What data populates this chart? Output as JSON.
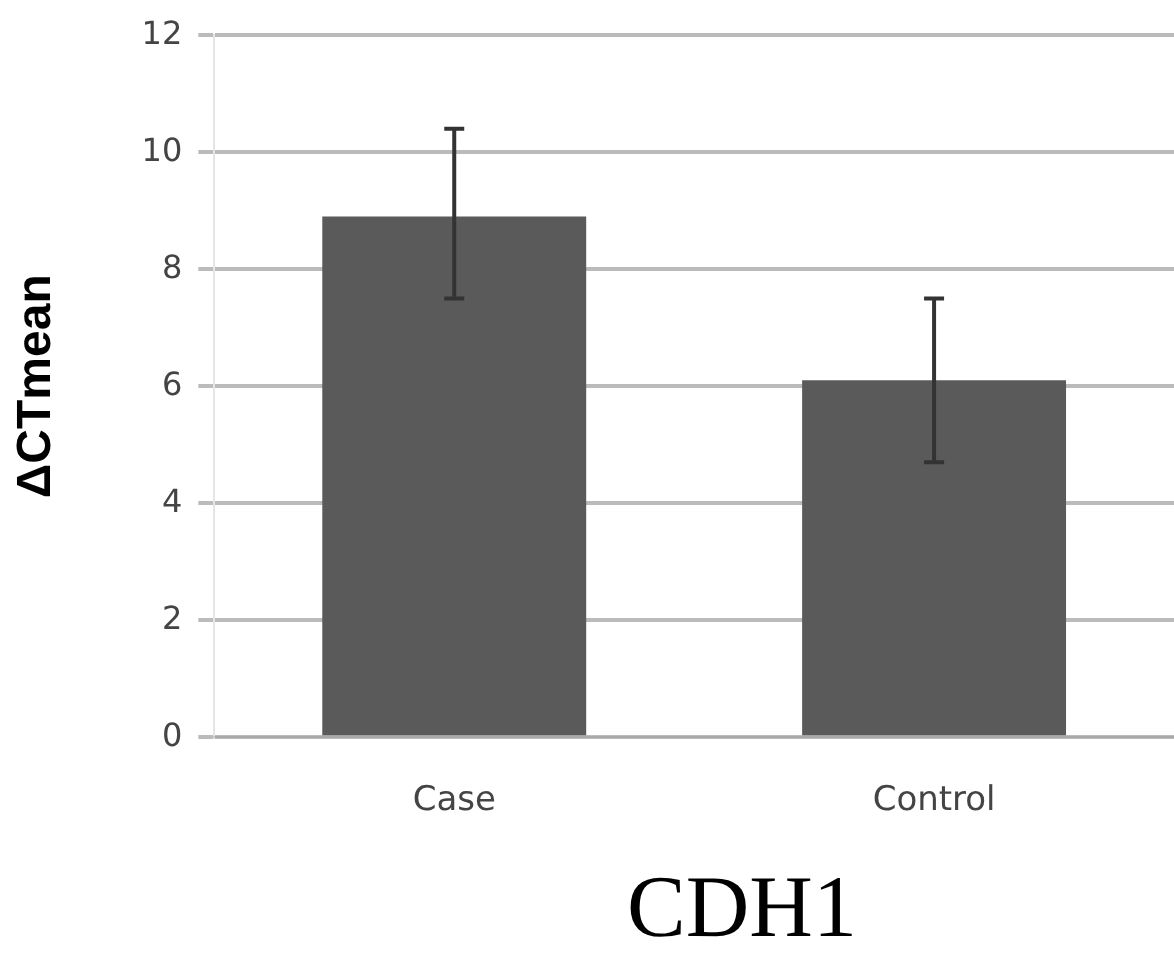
{
  "chart_data": {
    "type": "bar",
    "title": "CDH1",
    "ylabel": "ΔCTmean",
    "categories": [
      "Case",
      "Control"
    ],
    "values": [
      8.9,
      6.1
    ],
    "errors": [
      [
        7.5,
        10.4
      ],
      [
        4.7,
        7.5
      ]
    ],
    "color": "#5a5a5a",
    "ylim": [
      0,
      12
    ],
    "yticks": [
      0,
      2,
      4,
      6,
      8,
      10,
      12
    ],
    "grid": "y"
  }
}
